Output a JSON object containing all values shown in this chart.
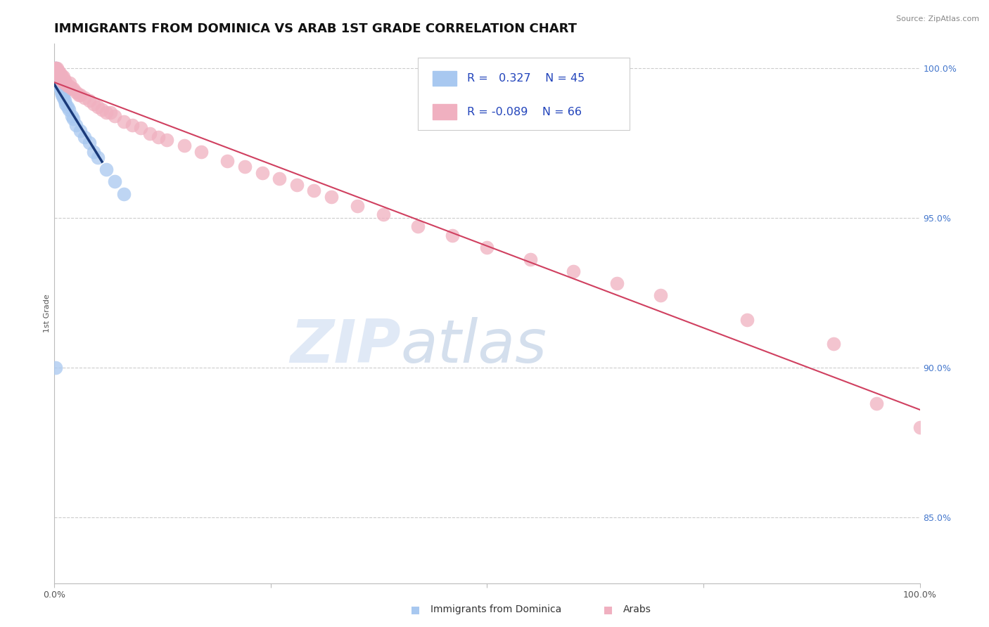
{
  "title": "IMMIGRANTS FROM DOMINICA VS ARAB 1ST GRADE CORRELATION CHART",
  "source": "Source: ZipAtlas.com",
  "ylabel": "1st Grade",
  "xlim": [
    0.0,
    1.0
  ],
  "ylim": [
    0.828,
    1.008
  ],
  "y_ticks_right": [
    0.85,
    0.9,
    0.95,
    1.0
  ],
  "y_tick_labels_right": [
    "85.0%",
    "90.0%",
    "95.0%",
    "100.0%"
  ],
  "grid_color": "#cccccc",
  "background_color": "#ffffff",
  "blue_color": "#a8c8f0",
  "blue_line_color": "#1a3a7a",
  "pink_color": "#f0b0c0",
  "pink_line_color": "#d04060",
  "R_blue": 0.327,
  "N_blue": 45,
  "R_pink": -0.089,
  "N_pink": 66,
  "legend_label_blue": "Immigrants from Dominica",
  "legend_label_pink": "Arabs",
  "watermark_ZIP": "ZIP",
  "watermark_atlas": "atlas",
  "title_fontsize": 13,
  "axis_label_fontsize": 8,
  "tick_fontsize": 9,
  "blue_x": [
    0.001,
    0.001,
    0.001,
    0.001,
    0.001,
    0.001,
    0.002,
    0.002,
    0.002,
    0.002,
    0.003,
    0.003,
    0.003,
    0.003,
    0.004,
    0.004,
    0.004,
    0.005,
    0.005,
    0.005,
    0.006,
    0.006,
    0.007,
    0.007,
    0.008,
    0.008,
    0.009,
    0.01,
    0.01,
    0.012,
    0.013,
    0.015,
    0.017,
    0.02,
    0.022,
    0.025,
    0.03,
    0.035,
    0.04,
    0.045,
    0.05,
    0.06,
    0.07,
    0.08,
    0.001
  ],
  "blue_y": [
    1.0,
    1.0,
    0.999,
    0.999,
    0.998,
    0.998,
    0.999,
    0.999,
    0.998,
    0.997,
    0.998,
    0.997,
    0.996,
    0.995,
    0.998,
    0.997,
    0.996,
    0.996,
    0.995,
    0.994,
    0.996,
    0.995,
    0.994,
    0.993,
    0.993,
    0.992,
    0.991,
    0.991,
    0.99,
    0.989,
    0.988,
    0.987,
    0.986,
    0.984,
    0.983,
    0.981,
    0.979,
    0.977,
    0.975,
    0.972,
    0.97,
    0.966,
    0.962,
    0.958,
    0.9
  ],
  "pink_x": [
    0.001,
    0.001,
    0.002,
    0.002,
    0.003,
    0.003,
    0.004,
    0.004,
    0.005,
    0.005,
    0.006,
    0.006,
    0.007,
    0.007,
    0.008,
    0.008,
    0.009,
    0.01,
    0.01,
    0.011,
    0.012,
    0.013,
    0.015,
    0.017,
    0.018,
    0.02,
    0.022,
    0.025,
    0.028,
    0.03,
    0.035,
    0.04,
    0.045,
    0.05,
    0.055,
    0.06,
    0.065,
    0.07,
    0.08,
    0.09,
    0.1,
    0.11,
    0.12,
    0.13,
    0.15,
    0.17,
    0.2,
    0.22,
    0.24,
    0.26,
    0.28,
    0.3,
    0.32,
    0.35,
    0.38,
    0.42,
    0.46,
    0.5,
    0.55,
    0.6,
    0.65,
    0.7,
    0.8,
    0.9,
    0.95,
    1.0
  ],
  "pink_y": [
    1.0,
    1.0,
    0.999,
    0.999,
    1.0,
    0.999,
    0.999,
    0.998,
    0.999,
    0.998,
    0.998,
    0.997,
    0.997,
    0.998,
    0.997,
    0.996,
    0.997,
    0.996,
    0.997,
    0.995,
    0.996,
    0.995,
    0.994,
    0.994,
    0.995,
    0.993,
    0.993,
    0.992,
    0.991,
    0.991,
    0.99,
    0.989,
    0.988,
    0.987,
    0.986,
    0.985,
    0.985,
    0.984,
    0.982,
    0.981,
    0.98,
    0.978,
    0.977,
    0.976,
    0.974,
    0.972,
    0.969,
    0.967,
    0.965,
    0.963,
    0.961,
    0.959,
    0.957,
    0.954,
    0.951,
    0.947,
    0.944,
    0.94,
    0.936,
    0.932,
    0.928,
    0.924,
    0.916,
    0.908,
    0.888,
    0.88
  ]
}
